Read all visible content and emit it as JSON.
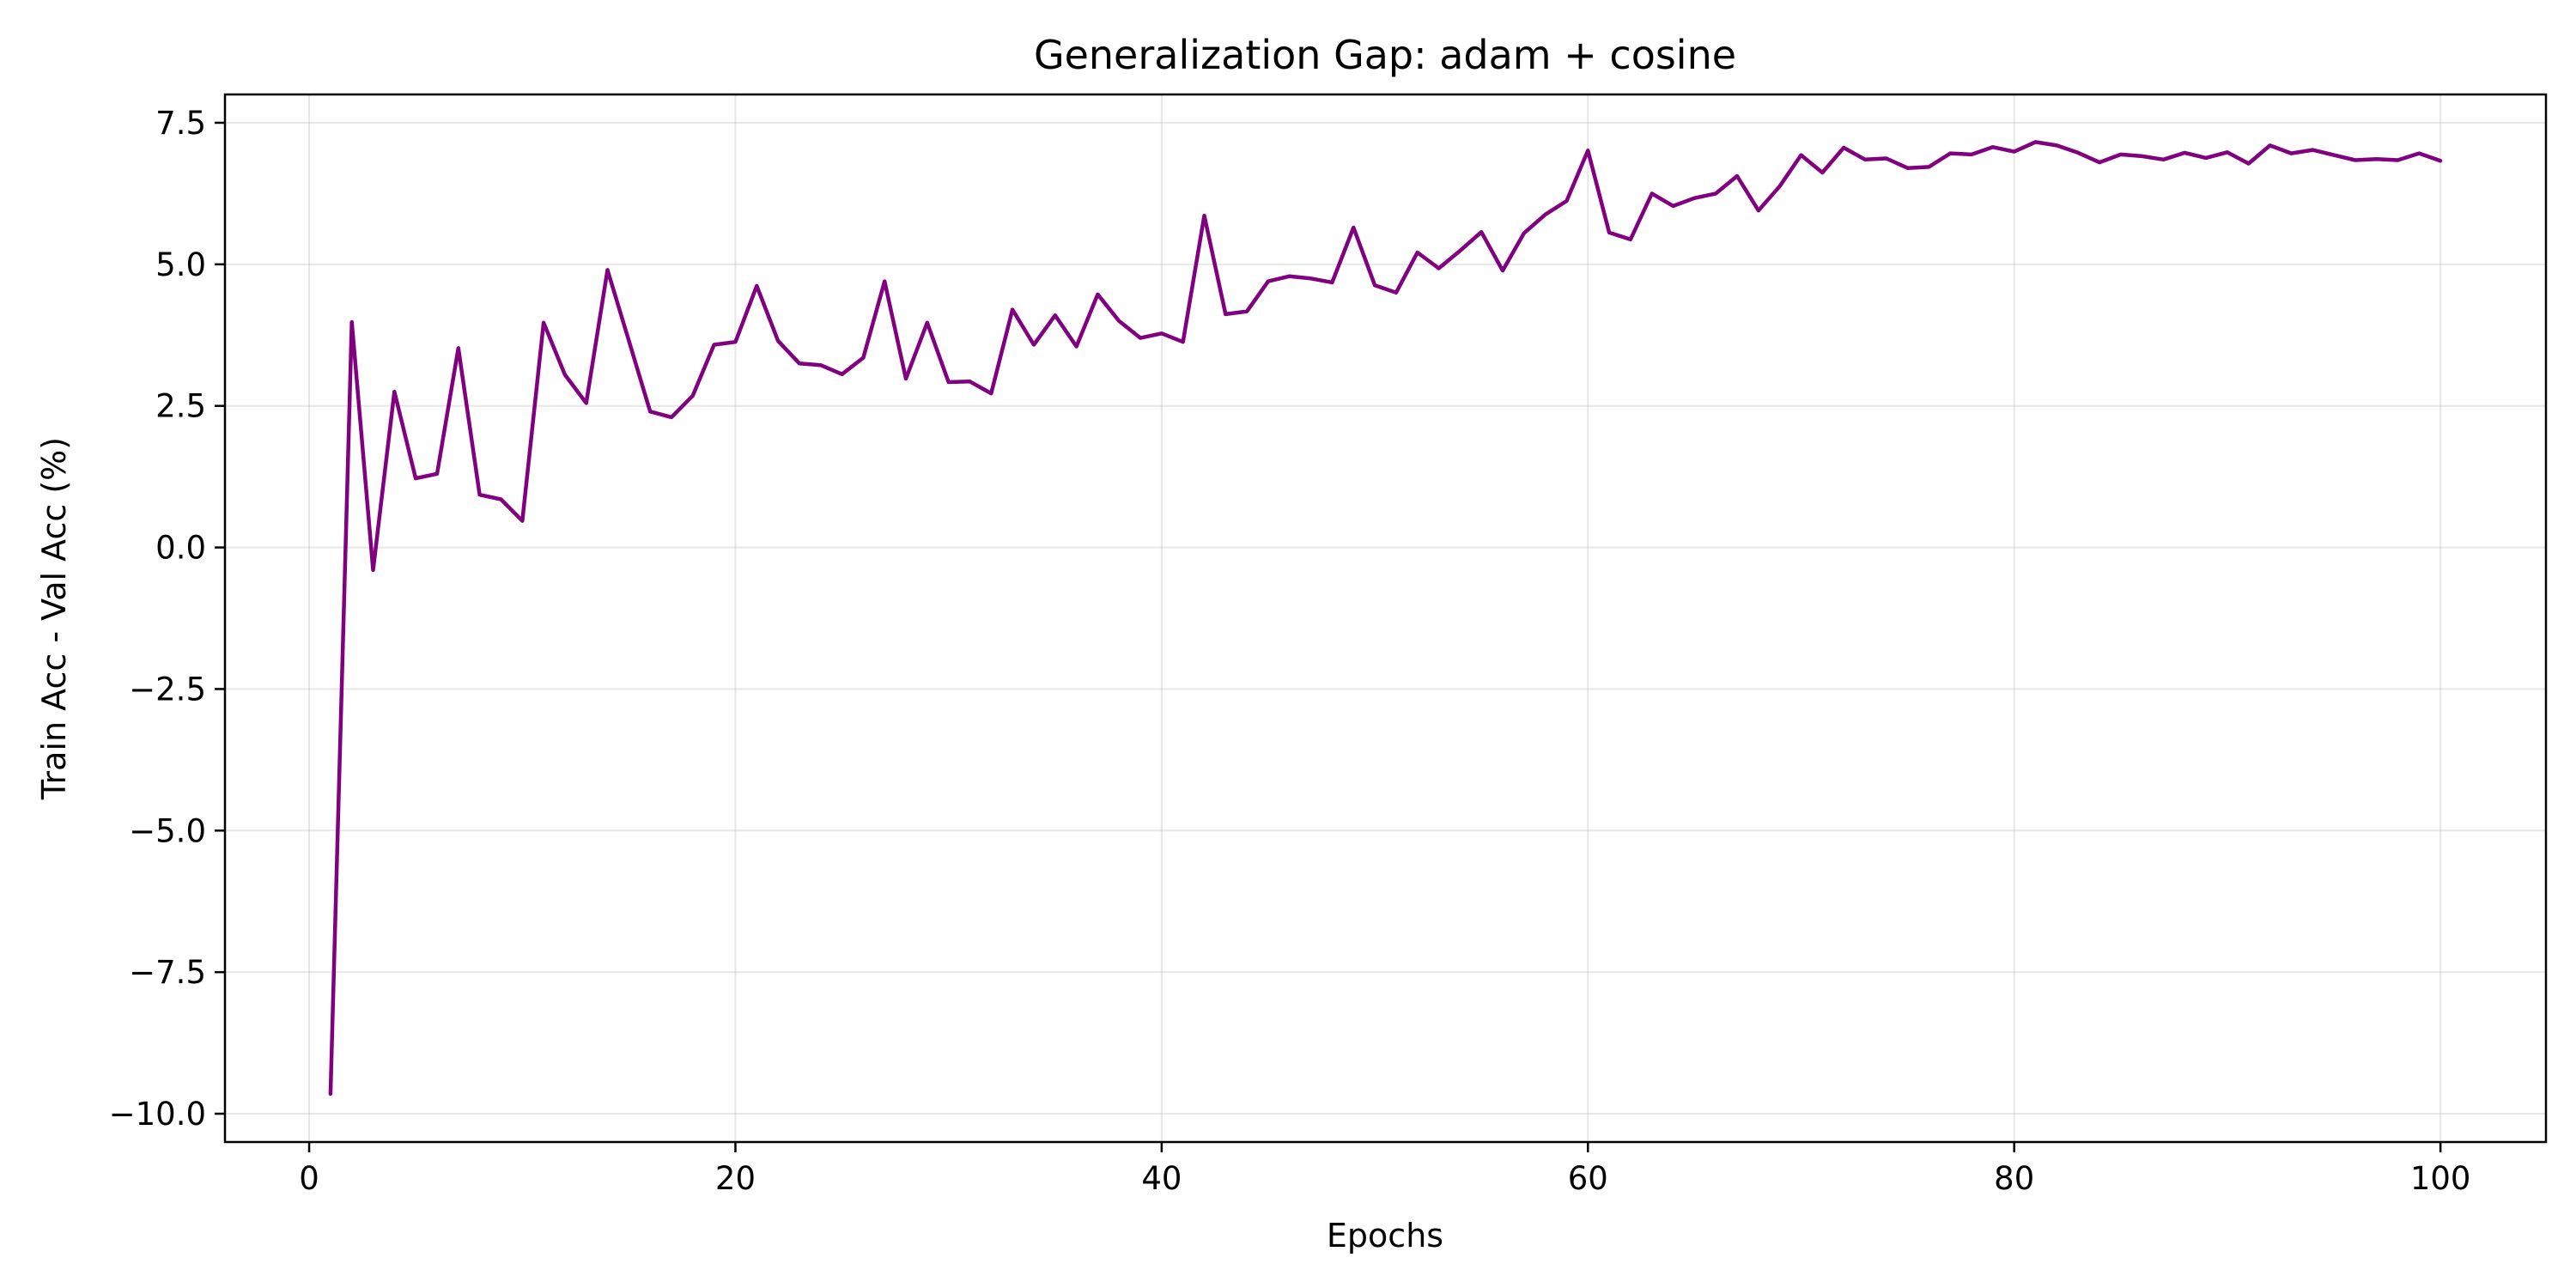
{
  "chart_data": {
    "type": "line",
    "title": "Generalization Gap: adam + cosine",
    "xlabel": "Epochs",
    "ylabel": "Train Acc - Val Acc (%)",
    "xlim": [
      -3.95,
      104.95
    ],
    "ylim": [
      -10.5,
      8.0
    ],
    "xticks": [
      0,
      20,
      40,
      60,
      80,
      100
    ],
    "xtick_labels": [
      "0",
      "20",
      "40",
      "60",
      "80",
      "100"
    ],
    "yticks": [
      -10.0,
      -7.5,
      -5.0,
      -2.5,
      0.0,
      2.5,
      5.0,
      7.5
    ],
    "ytick_labels": [
      "−10.0",
      "−7.5",
      "−5.0",
      "−2.5",
      "0.0",
      "2.5",
      "5.0",
      "7.5"
    ],
    "grid": true,
    "legend": "none",
    "color": "#800080",
    "x": [
      1,
      2,
      3,
      4,
      5,
      6,
      7,
      8,
      9,
      10,
      11,
      12,
      13,
      14,
      15,
      16,
      17,
      18,
      19,
      20,
      21,
      22,
      23,
      24,
      25,
      26,
      27,
      28,
      29,
      30,
      31,
      32,
      33,
      34,
      35,
      36,
      37,
      38,
      39,
      40,
      41,
      42,
      43,
      44,
      45,
      46,
      47,
      48,
      49,
      50,
      51,
      52,
      53,
      54,
      55,
      56,
      57,
      58,
      59,
      60,
      61,
      62,
      63,
      64,
      65,
      66,
      67,
      68,
      69,
      70,
      71,
      72,
      73,
      74,
      75,
      76,
      77,
      78,
      79,
      80,
      81,
      82,
      83,
      84,
      85,
      86,
      87,
      88,
      89,
      90,
      91,
      92,
      93,
      94,
      95,
      96,
      97,
      98,
      99,
      100
    ],
    "y": [
      -9.65,
      3.98,
      -0.4,
      2.75,
      1.22,
      1.3,
      3.52,
      0.93,
      0.85,
      0.47,
      3.97,
      3.05,
      2.55,
      4.9,
      3.65,
      2.4,
      2.3,
      2.68,
      3.58,
      3.63,
      4.62,
      3.65,
      3.25,
      3.22,
      3.06,
      3.35,
      4.7,
      2.98,
      3.97,
      2.92,
      2.93,
      2.72,
      4.2,
      3.58,
      4.1,
      3.55,
      4.47,
      4.0,
      3.7,
      3.78,
      3.63,
      5.86,
      4.12,
      4.17,
      4.7,
      4.79,
      4.75,
      4.68,
      5.65,
      4.63,
      4.5,
      5.21,
      4.93,
      5.24,
      5.57,
      4.89,
      5.55,
      5.88,
      6.12,
      7.01,
      5.56,
      5.44,
      6.25,
      6.03,
      6.17,
      6.25,
      6.56,
      5.95,
      6.38,
      6.93,
      6.62,
      7.06,
      6.85,
      6.87,
      6.7,
      6.72,
      6.96,
      6.94,
      7.07,
      6.99,
      7.16,
      7.1,
      6.97,
      6.8,
      6.94,
      6.91,
      6.85,
      6.97,
      6.88,
      6.98,
      6.78,
      7.1,
      6.96,
      7.02,
      6.93,
      6.84,
      6.86,
      6.84,
      6.96,
      6.83
    ]
  }
}
